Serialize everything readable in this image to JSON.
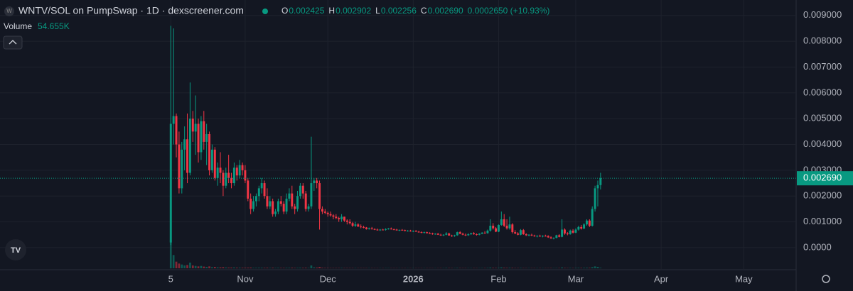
{
  "chart_data": {
    "type": "candlestick",
    "title": "WNTV/SOL on PumpSwap · 1D · dexscreener.com",
    "readout": [
      {
        "key": "O",
        "value": "0.002425"
      },
      {
        "key": "H",
        "value": "0.002902"
      },
      {
        "key": "L",
        "value": "0.002256"
      },
      {
        "key": "C",
        "value": "0.002690"
      }
    ],
    "change": "0.0002650 (+10.93%)",
    "volume_title": "Volume",
    "volume_readout": {
      "value": 54655,
      "label": "54.655K"
    },
    "up_color": "#089981",
    "down_color": "#f23645",
    "xlim": [
      -62,
      227
    ],
    "xticks": [
      {
        "value": 0,
        "label": "5"
      },
      {
        "value": 27,
        "label": "Nov"
      },
      {
        "value": 57,
        "label": "Dec"
      },
      {
        "value": 88,
        "label": "2026"
      },
      {
        "value": 119,
        "label": "Feb"
      },
      {
        "value": 147,
        "label": "Mar"
      },
      {
        "value": 178,
        "label": "Apr"
      },
      {
        "value": 208,
        "label": "May"
      }
    ],
    "ylim": [
      -0.0008,
      0.0096
    ],
    "yticks": [
      {
        "value": 0,
        "label": "0.0000"
      },
      {
        "value": 0.001,
        "label": "0.001000"
      },
      {
        "value": 0.002,
        "label": "0.002000"
      },
      {
        "value": 0.003,
        "label": "0.003000"
      },
      {
        "value": 0.004,
        "label": "0.004000"
      },
      {
        "value": 0.005,
        "label": "0.005000"
      },
      {
        "value": 0.006,
        "label": "0.006000"
      },
      {
        "value": 0.007,
        "label": "0.007000"
      },
      {
        "value": 0.008,
        "label": "0.008000"
      },
      {
        "value": 0.009,
        "label": "0.009000"
      }
    ],
    "grid": true,
    "last_price": {
      "value": 0.00269,
      "label": "0.002690"
    },
    "ohlc": [
      [
        0.0002,
        0.0086,
        0.0001,
        0.0048
      ],
      [
        0.0048,
        0.0085,
        0.004,
        0.0051
      ],
      [
        0.0051,
        0.0052,
        0.0035,
        0.004
      ],
      [
        0.004,
        0.0045,
        0.0021,
        0.0023
      ],
      [
        0.0023,
        0.0041,
        0.0021,
        0.0038
      ],
      [
        0.0038,
        0.0047,
        0.003,
        0.0042
      ],
      [
        0.0042,
        0.0052,
        0.0025,
        0.0029
      ],
      [
        0.0029,
        0.0064,
        0.0028,
        0.005
      ],
      [
        0.005,
        0.0053,
        0.0041,
        0.0045
      ],
      [
        0.0045,
        0.0059,
        0.0036,
        0.0048
      ],
      [
        0.0048,
        0.005,
        0.0033,
        0.0037
      ],
      [
        0.0037,
        0.0051,
        0.0034,
        0.0049
      ],
      [
        0.0049,
        0.0053,
        0.0038,
        0.0041
      ],
      [
        0.0041,
        0.0048,
        0.0032,
        0.0044
      ],
      [
        0.0044,
        0.0045,
        0.0028,
        0.003
      ],
      [
        0.003,
        0.004,
        0.0029,
        0.0038
      ],
      [
        0.0038,
        0.0039,
        0.0026,
        0.0027
      ],
      [
        0.0027,
        0.0033,
        0.0024,
        0.0031
      ],
      [
        0.0031,
        0.0037,
        0.0025,
        0.0029
      ],
      [
        0.0029,
        0.003,
        0.002,
        0.0024
      ],
      [
        0.0024,
        0.0031,
        0.0023,
        0.0029
      ],
      [
        0.0029,
        0.0036,
        0.0025,
        0.0027
      ],
      [
        0.0027,
        0.0029,
        0.0023,
        0.0025
      ],
      [
        0.0025,
        0.0033,
        0.0024,
        0.0031
      ],
      [
        0.0031,
        0.0032,
        0.0026,
        0.0028
      ],
      [
        0.0028,
        0.0034,
        0.0027,
        0.0032
      ],
      [
        0.0032,
        0.0033,
        0.0028,
        0.003
      ],
      [
        0.003,
        0.0032,
        0.0025,
        0.0026
      ],
      [
        0.0026,
        0.0027,
        0.0018,
        0.0019
      ],
      [
        0.0019,
        0.0021,
        0.0013,
        0.0015
      ],
      [
        0.0015,
        0.002,
        0.0014,
        0.0018
      ],
      [
        0.0018,
        0.0021,
        0.0016,
        0.002
      ],
      [
        0.002,
        0.0024,
        0.0018,
        0.0023
      ],
      [
        0.0023,
        0.0027,
        0.0021,
        0.0025
      ],
      [
        0.0025,
        0.0026,
        0.0019,
        0.002
      ],
      [
        0.002,
        0.0023,
        0.0015,
        0.0016
      ],
      [
        0.0016,
        0.002,
        0.0015,
        0.0018
      ],
      [
        0.0018,
        0.0019,
        0.0012,
        0.0013
      ],
      [
        0.0013,
        0.0015,
        0.0012,
        0.0014
      ],
      [
        0.0014,
        0.0019,
        0.0013,
        0.0018
      ],
      [
        0.0018,
        0.002,
        0.0016,
        0.0017
      ],
      [
        0.0017,
        0.0018,
        0.0013,
        0.0014
      ],
      [
        0.0014,
        0.0021,
        0.0013,
        0.0019
      ],
      [
        0.0019,
        0.0023,
        0.0018,
        0.0021
      ],
      [
        0.0021,
        0.0024,
        0.0015,
        0.0016
      ],
      [
        0.0016,
        0.0017,
        0.0013,
        0.0015
      ],
      [
        0.0015,
        0.0022,
        0.0014,
        0.002
      ],
      [
        0.002,
        0.0025,
        0.0019,
        0.0024
      ],
      [
        0.0024,
        0.0025,
        0.0019,
        0.0021
      ],
      [
        0.0021,
        0.0022,
        0.0014,
        0.0015
      ],
      [
        0.0015,
        0.0017,
        0.0014,
        0.0016
      ],
      [
        0.0016,
        0.0043,
        0.0015,
        0.0025
      ],
      [
        0.0025,
        0.0027,
        0.0022,
        0.0026
      ],
      [
        0.0026,
        0.0027,
        0.0023,
        0.0025
      ],
      [
        0.0025,
        0.0026,
        0.0007,
        0.0015
      ],
      [
        0.0015,
        0.0016,
        0.0013,
        0.0014
      ],
      [
        0.0014,
        0.0015,
        0.0013,
        0.00135
      ],
      [
        0.00135,
        0.0014,
        0.0012,
        0.0013
      ],
      [
        0.0013,
        0.0014,
        0.0012,
        0.00125
      ],
      [
        0.00125,
        0.0013,
        0.0011,
        0.0012
      ],
      [
        0.0012,
        0.0013,
        0.0011,
        0.00115
      ],
      [
        0.00115,
        0.0012,
        0.001,
        0.0011
      ],
      [
        0.0011,
        0.0013,
        0.001,
        0.0012
      ],
      [
        0.0012,
        0.0012,
        0.001,
        0.00105
      ],
      [
        0.00105,
        0.0011,
        0.0009,
        0.001
      ],
      [
        0.001,
        0.0011,
        0.0009,
        0.00095
      ],
      [
        0.00095,
        0.001,
        0.0008,
        0.00085
      ],
      [
        0.00085,
        0.001,
        0.0008,
        0.0009
      ],
      [
        0.0009,
        0.00095,
        0.0008,
        0.00082
      ],
      [
        0.00082,
        0.0009,
        0.00075,
        0.0008
      ],
      [
        0.0008,
        0.00085,
        0.00075,
        0.00078
      ],
      [
        0.00078,
        0.0008,
        0.0007,
        0.00072
      ],
      [
        0.00072,
        0.00078,
        0.0007,
        0.00075
      ],
      [
        0.00075,
        0.0008,
        0.0007,
        0.00072
      ],
      [
        0.00072,
        0.00075,
        0.00068,
        0.0007
      ],
      [
        0.0007,
        0.00074,
        0.00066,
        0.00068
      ],
      [
        0.00068,
        0.00072,
        0.00065,
        0.0007
      ],
      [
        0.0007,
        0.00073,
        0.00067,
        0.00069
      ],
      [
        0.00069,
        0.00075,
        0.00066,
        0.00072
      ],
      [
        0.00072,
        0.00076,
        0.0007,
        0.00074
      ],
      [
        0.00074,
        0.00078,
        0.0007,
        0.00071
      ],
      [
        0.00071,
        0.00074,
        0.00068,
        0.0007
      ],
      [
        0.0007,
        0.00073,
        0.00066,
        0.00067
      ],
      [
        0.00067,
        0.0007,
        0.00064,
        0.00069
      ],
      [
        0.00069,
        0.00072,
        0.00066,
        0.00068
      ],
      [
        0.00068,
        0.0007,
        0.00063,
        0.00065
      ],
      [
        0.00065,
        0.00068,
        0.00062,
        0.00066
      ],
      [
        0.00066,
        0.00069,
        0.00062,
        0.00063
      ],
      [
        0.00063,
        0.00067,
        0.0006,
        0.00065
      ],
      [
        0.00065,
        0.00068,
        0.00061,
        0.00062
      ],
      [
        0.00062,
        0.00065,
        0.00058,
        0.0006
      ],
      [
        0.0006,
        0.00063,
        0.00056,
        0.00058
      ],
      [
        0.00058,
        0.00062,
        0.00055,
        0.0006
      ],
      [
        0.0006,
        0.00062,
        0.00055,
        0.00056
      ],
      [
        0.00056,
        0.0006,
        0.00053,
        0.00055
      ],
      [
        0.00055,
        0.00058,
        0.0005,
        0.00052
      ],
      [
        0.00052,
        0.00056,
        0.0005,
        0.00054
      ],
      [
        0.00054,
        0.00057,
        0.00049,
        0.0005
      ],
      [
        0.0005,
        0.00054,
        0.00046,
        0.00048
      ],
      [
        0.00048,
        0.00052,
        0.00045,
        0.0005
      ],
      [
        0.0005,
        0.0006,
        0.00048,
        0.00055
      ],
      [
        0.00055,
        0.00058,
        0.00046,
        0.00047
      ],
      [
        0.00047,
        0.0005,
        0.00042,
        0.00045
      ],
      [
        0.00045,
        0.0005,
        0.00042,
        0.00048
      ],
      [
        0.00048,
        0.00062,
        0.00046,
        0.0006
      ],
      [
        0.0006,
        0.00064,
        0.00052,
        0.00054
      ],
      [
        0.00054,
        0.00058,
        0.00048,
        0.0005
      ],
      [
        0.0005,
        0.00055,
        0.00045,
        0.00048
      ],
      [
        0.00048,
        0.00056,
        0.00046,
        0.00052
      ],
      [
        0.00052,
        0.00058,
        0.00049,
        0.00056
      ],
      [
        0.00056,
        0.0006,
        0.0005,
        0.00052
      ],
      [
        0.00052,
        0.00055,
        0.00047,
        0.0005
      ],
      [
        0.0005,
        0.00056,
        0.00048,
        0.00054
      ],
      [
        0.00054,
        0.0006,
        0.00052,
        0.00058
      ],
      [
        0.00058,
        0.00064,
        0.00054,
        0.00056
      ],
      [
        0.00056,
        0.0007,
        0.00054,
        0.00066
      ],
      [
        0.00066,
        0.0011,
        0.00062,
        0.00085
      ],
      [
        0.00085,
        0.00095,
        0.0007,
        0.00075
      ],
      [
        0.00075,
        0.0008,
        0.0006,
        0.00062
      ],
      [
        0.00062,
        0.0009,
        0.0006,
        0.00088
      ],
      [
        0.00088,
        0.0014,
        0.00085,
        0.0011
      ],
      [
        0.0011,
        0.0013,
        0.0008,
        0.00085
      ],
      [
        0.00085,
        0.0011,
        0.0007,
        0.00075
      ],
      [
        0.00075,
        0.0012,
        0.0007,
        0.0009
      ],
      [
        0.0009,
        0.00095,
        0.00055,
        0.0006
      ],
      [
        0.0006,
        0.00068,
        0.00052,
        0.00055
      ],
      [
        0.00055,
        0.0006,
        0.00048,
        0.0005
      ],
      [
        0.0005,
        0.00072,
        0.00048,
        0.00068
      ],
      [
        0.00068,
        0.00072,
        0.0005,
        0.00052
      ],
      [
        0.00052,
        0.00056,
        0.00045,
        0.00048
      ],
      [
        0.00048,
        0.00052,
        0.00044,
        0.0005
      ],
      [
        0.0005,
        0.00054,
        0.00045,
        0.00047
      ],
      [
        0.00047,
        0.0005,
        0.00042,
        0.00045
      ],
      [
        0.00045,
        0.00048,
        0.0004,
        0.00046
      ],
      [
        0.00046,
        0.0005,
        0.00042,
        0.00044
      ],
      [
        0.00044,
        0.00048,
        0.0004,
        0.00046
      ],
      [
        0.00046,
        0.0005,
        0.00043,
        0.00045
      ],
      [
        0.00045,
        0.00048,
        0.00038,
        0.0004
      ],
      [
        0.0004,
        0.00044,
        0.00034,
        0.00036
      ],
      [
        0.00036,
        0.0004,
        0.00032,
        0.00038
      ],
      [
        0.00038,
        0.0005,
        0.00036,
        0.00048
      ],
      [
        0.00048,
        0.00052,
        0.0004,
        0.00042
      ],
      [
        0.00042,
        0.0011,
        0.0004,
        0.0007
      ],
      [
        0.0007,
        0.00075,
        0.0005,
        0.00055
      ],
      [
        0.00055,
        0.0006,
        0.00048,
        0.00052
      ],
      [
        0.00052,
        0.0007,
        0.0005,
        0.00066
      ],
      [
        0.00066,
        0.00072,
        0.00055,
        0.00058
      ],
      [
        0.00058,
        0.00075,
        0.00056,
        0.0007
      ],
      [
        0.0007,
        0.00085,
        0.00066,
        0.0008
      ],
      [
        0.0008,
        0.00088,
        0.0007,
        0.00074
      ],
      [
        0.00074,
        0.00095,
        0.00072,
        0.0009
      ],
      [
        0.0009,
        0.0011,
        0.00085,
        0.00105
      ],
      [
        0.00105,
        0.0011,
        0.0008,
        0.00085
      ],
      [
        0.00085,
        0.0016,
        0.00082,
        0.0015
      ],
      [
        0.0015,
        0.0024,
        0.0014,
        0.0023
      ],
      [
        0.0023,
        0.0026,
        0.0016,
        0.002425
      ],
      [
        0.002425,
        0.002902,
        0.002256,
        0.00269
      ]
    ],
    "volume": [
      3000000,
      1400000,
      700000,
      500000,
      400000,
      300000,
      350000,
      600000,
      300000,
      250000,
      200000,
      250000,
      180000,
      150000,
      200000,
      120000,
      150000,
      100000,
      100000,
      120000,
      90000,
      80000,
      80000,
      90000,
      70000,
      70000,
      60000,
      60000,
      70000,
      80000,
      50000,
      50000,
      60000,
      60000,
      50000,
      60000,
      40000,
      60000,
      40000,
      50000,
      40000,
      40000,
      50000,
      50000,
      60000,
      40000,
      50000,
      60000,
      50000,
      60000,
      40000,
      300000,
      100000,
      80000,
      150000,
      60000,
      40000,
      40000,
      30000,
      30000,
      30000,
      30000,
      40000,
      30000,
      30000,
      30000,
      30000,
      30000,
      25000,
      25000,
      25000,
      25000,
      25000,
      25000,
      20000,
      20000,
      20000,
      20000,
      25000,
      25000,
      20000,
      20000,
      20000,
      20000,
      20000,
      20000,
      20000,
      20000,
      20000,
      20000,
      20000,
      20000,
      20000,
      20000,
      20000,
      20000,
      20000,
      20000,
      25000,
      25000,
      40000,
      30000,
      25000,
      25000,
      40000,
      30000,
      25000,
      25000,
      25000,
      25000,
      25000,
      25000,
      25000,
      30000,
      30000,
      40000,
      80000,
      50000,
      40000,
      50000,
      100000,
      60000,
      50000,
      60000,
      50000,
      30000,
      30000,
      40000,
      30000,
      25000,
      25000,
      25000,
      25000,
      25000,
      25000,
      25000,
      25000,
      25000,
      30000,
      25000,
      30000,
      30000,
      90000,
      40000,
      30000,
      40000,
      30000,
      40000,
      50000,
      40000,
      50000,
      60000,
      50000,
      120000,
      200000,
      150000,
      54655
    ]
  }
}
